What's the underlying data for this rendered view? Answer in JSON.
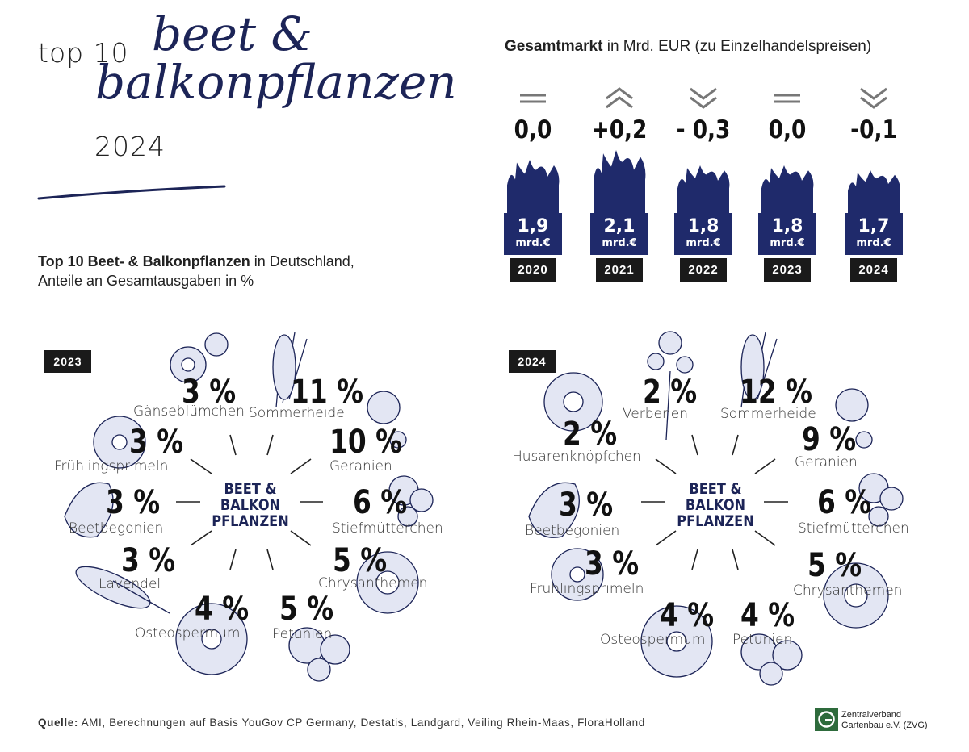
{
  "header": {
    "top10": "top 10",
    "script_line1": "beet &",
    "script_line2": "balkonpflanzen",
    "year": "2024"
  },
  "market": {
    "title_bold": "Gesamtmarkt",
    "title_rest": " in Mrd. EUR (zu Einzelhandelspreisen)",
    "unit": "mrd.€"
  },
  "subtitle": {
    "bold": "Top 10 Beet- & Balkonpflanzen",
    "rest": " in Deutschland,",
    "line2": "Anteile an Gesamtausgaben in %"
  },
  "center_label": [
    "BEET &",
    "BALKON",
    "PFLANZEN"
  ],
  "source": {
    "bold": "Quelle:",
    "rest": " AMI, Berechnungen auf Basis YouGov CP Germany, Destatis, Landgard, Veiling Rhein-Maas, FloraHolland"
  },
  "logo_text": [
    "Zentralverband",
    "Gartenbau e.V. (ZVG)"
  ],
  "colors": {
    "navy": "#1c2457",
    "bar": "#1f2a6b",
    "ink": "#111111",
    "flower_fill": "#e3e6f3"
  },
  "chart_data": [
    {
      "type": "bar",
      "title": "Gesamtmarkt in Mrd. EUR (zu Einzelhandelspreisen)",
      "categories": [
        "2020",
        "2021",
        "2022",
        "2023",
        "2024"
      ],
      "values": [
        1.9,
        2.1,
        1.8,
        1.8,
        1.7
      ],
      "value_labels": [
        "1,9",
        "2,1",
        "1,8",
        "1,8",
        "1,7"
      ],
      "changes": [
        "0,0",
        "+0,2",
        "- 0,3",
        "0,0",
        "-0,1"
      ],
      "trend_icons": [
        "equal-icon",
        "up-chevron-icon",
        "down-chevron-icon",
        "equal-icon",
        "down-chevron-icon"
      ]
    },
    {
      "type": "pie",
      "title": "2023",
      "items": [
        {
          "label": "Sommerheide",
          "pct": "11 %",
          "value": 11
        },
        {
          "label": "Geranien",
          "pct": "10 %",
          "value": 10
        },
        {
          "label": "Stiefmütterchen",
          "pct": "6 %",
          "value": 6
        },
        {
          "label": "Chrysanthemen",
          "pct": "5 %",
          "value": 5
        },
        {
          "label": "Petunien",
          "pct": "5 %",
          "value": 5
        },
        {
          "label": "Osteospermum",
          "pct": "4 %",
          "value": 4
        },
        {
          "label": "Lavendel",
          "pct": "3 %",
          "value": 3
        },
        {
          "label": "Beetbegonien",
          "pct": "3 %",
          "value": 3
        },
        {
          "label": "Frühlingsprimeln",
          "pct": "3 %",
          "value": 3
        },
        {
          "label": "Gänseblümchen",
          "pct": "3 %",
          "value": 3
        }
      ]
    },
    {
      "type": "pie",
      "title": "2024",
      "items": [
        {
          "label": "Sommerheide",
          "pct": "12 %",
          "value": 12
        },
        {
          "label": "Geranien",
          "pct": "9 %",
          "value": 9
        },
        {
          "label": "Stiefmütterchen",
          "pct": "6 %",
          "value": 6
        },
        {
          "label": "Chrysanthemen",
          "pct": "5 %",
          "value": 5
        },
        {
          "label": "Petunien",
          "pct": "4 %",
          "value": 4
        },
        {
          "label": "Osteospermum",
          "pct": "4 %",
          "value": 4
        },
        {
          "label": "Frühlingsprimeln",
          "pct": "3 %",
          "value": 3
        },
        {
          "label": "Beetbegonien",
          "pct": "3 %",
          "value": 3
        },
        {
          "label": "Husarenknöpfchen",
          "pct": "2 %",
          "value": 2
        },
        {
          "label": "Verbenen",
          "pct": "2 %",
          "value": 2
        }
      ]
    }
  ]
}
